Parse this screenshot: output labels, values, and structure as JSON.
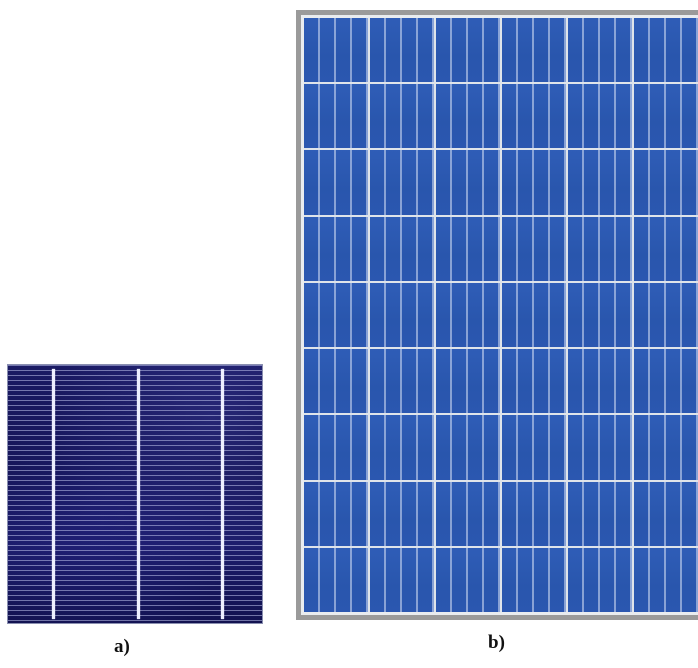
{
  "figure": {
    "label_a": "a)",
    "label_b": "b)"
  },
  "cell": {
    "busbar_count": 3,
    "color": "#181860"
  },
  "panel": {
    "columns": 6,
    "rows": 9,
    "cell_color": "#2b59b0",
    "frame_color": "#9a9a9a"
  }
}
